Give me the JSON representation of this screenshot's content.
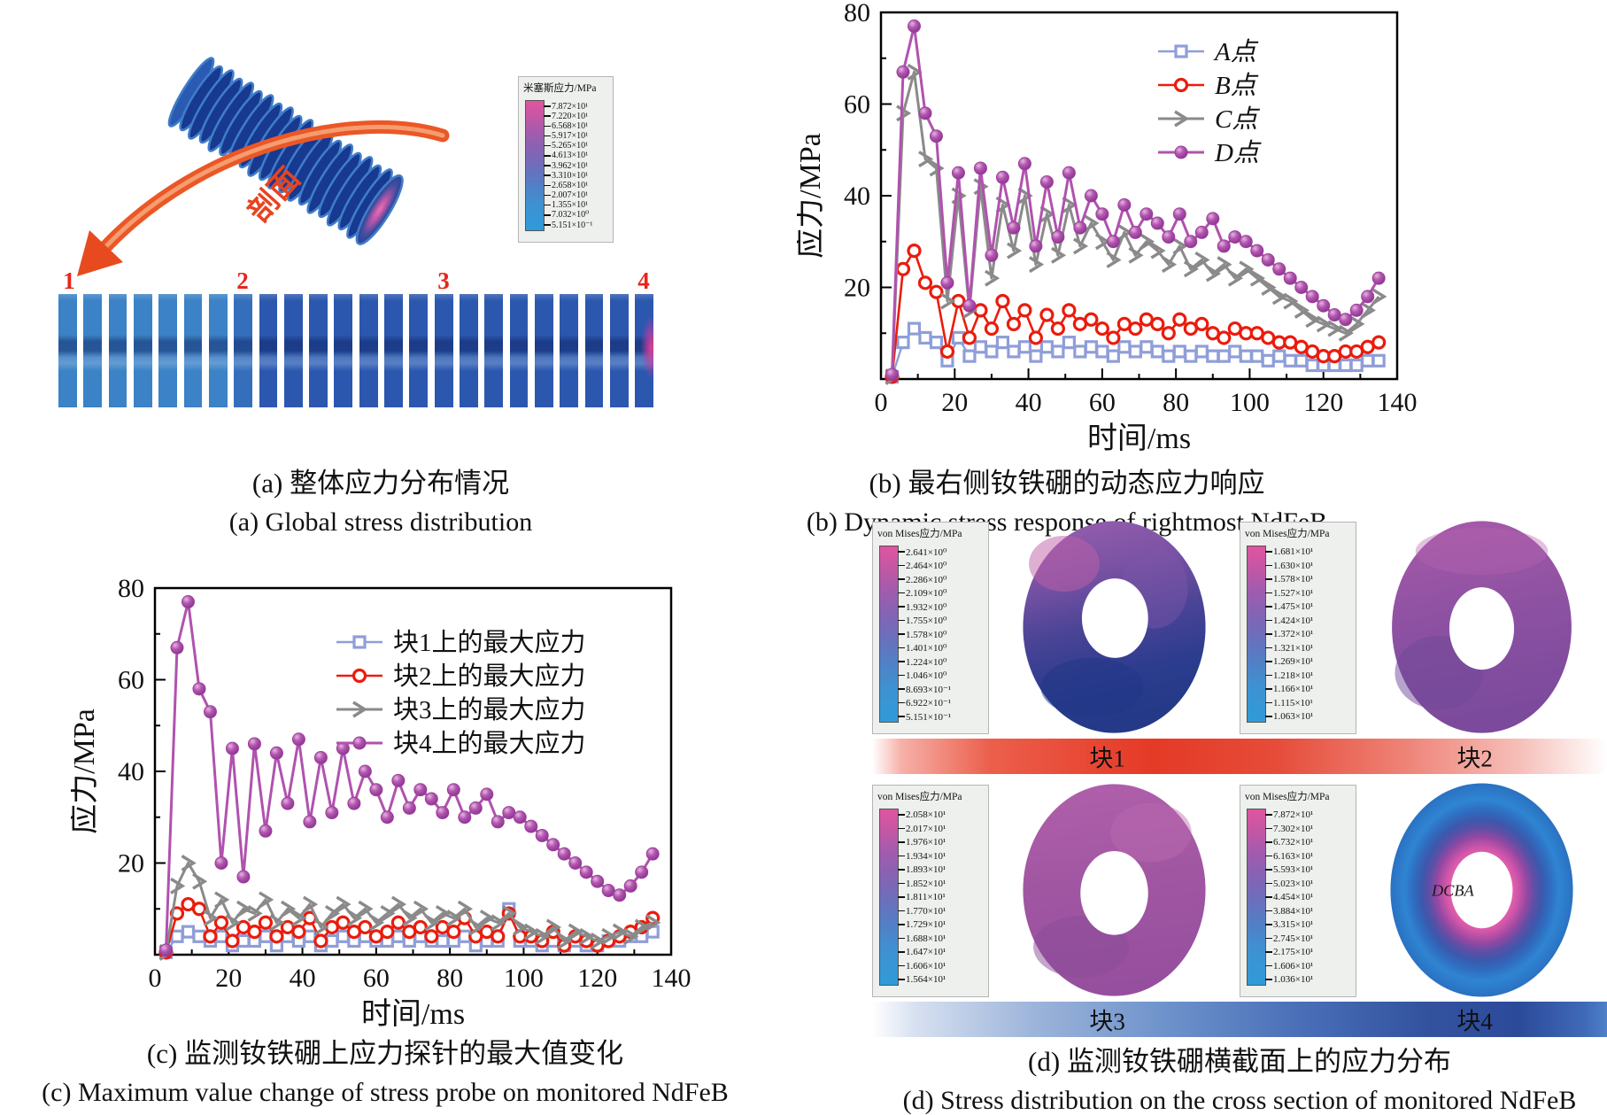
{
  "panel_a": {
    "caption_cn": "(a) 整体应力分布情况",
    "caption_en": "(a) Global stress distribution",
    "arrow_label": "剖面",
    "colorbar": {
      "title": "米塞斯应力/MPa",
      "values": [
        "7.872×10¹",
        "7.220×10¹",
        "6.568×10¹",
        "5.917×10¹",
        "5.265×10¹",
        "4.613×10¹",
        "3.962×10¹",
        "3.310×10¹",
        "2.658×10¹",
        "2.007×10¹",
        "1.355×10¹",
        "7.032×10⁰",
        "5.151×10⁻¹"
      ]
    },
    "block_numbers": [
      "1",
      "2",
      "3",
      "4"
    ],
    "bars": {
      "count": 24,
      "light_count": 7,
      "light_color": "#3b82c6",
      "mid_color": "#356fbb",
      "dark_color": "#2b57ae",
      "pink_accent": "#e83e98"
    }
  },
  "panel_b": {
    "caption_cn": "(b) 最右侧钕铁硼的动态应力响应",
    "caption_en": "(b) Dynamic stress response of rightmost NdFeB"
  },
  "panel_c": {
    "caption_cn": "(c) 监测钕铁硼上应力探针的最大值变化",
    "caption_en": "(c) Maximum value change of stress probe on monitored NdFeB"
  },
  "panel_d": {
    "caption_cn": "(d) 监测钕铁硼横截面上的应力分布",
    "caption_en": "(d) Stress distribution on the cross section of monitored NdFeB",
    "blocks": [
      {
        "label": "块1",
        "colorbar": {
          "title": "von Mises应力/MPa",
          "values": [
            "2.641×10⁰",
            "2.464×10⁰",
            "2.286×10⁰",
            "2.109×10⁰",
            "1.932×10⁰",
            "1.755×10⁰",
            "1.578×10⁰",
            "1.401×10⁰",
            "1.224×10⁰",
            "1.046×10⁰",
            "8.693×10⁻¹",
            "6.922×10⁻¹",
            "5.151×10⁻¹"
          ]
        }
      },
      {
        "label": "块2",
        "colorbar": {
          "title": "von Mises应力/MPa",
          "values": [
            "1.681×10¹",
            "1.630×10¹",
            "1.578×10¹",
            "1.527×10¹",
            "1.475×10¹",
            "1.424×10¹",
            "1.372×10¹",
            "1.321×10¹",
            "1.269×10¹",
            "1.218×10¹",
            "1.166×10¹",
            "1.115×10¹",
            "1.063×10¹"
          ]
        }
      },
      {
        "label": "块3",
        "colorbar": {
          "title": "von Mises应力/MPa",
          "values": [
            "2.058×10¹",
            "2.017×10¹",
            "1.976×10¹",
            "1.934×10¹",
            "1.893×10¹",
            "1.852×10¹",
            "1.811×10¹",
            "1.770×10¹",
            "1.729×10¹",
            "1.688×10¹",
            "1.647×10¹",
            "1.606×10¹",
            "1.564×10¹"
          ]
        }
      },
      {
        "label": "块4",
        "annotation": "DCBA",
        "colorbar": {
          "title": "von Mises应力/MPa",
          "values": [
            "7.872×10¹",
            "7.302×10¹",
            "6.732×10¹",
            "6.163×10¹",
            "5.593×10¹",
            "5.023×10¹",
            "4.454×10¹",
            "3.884×10¹",
            "3.315×10¹",
            "2.745×10¹",
            "2.175×10¹",
            "1.606×10¹",
            "1.036×10¹"
          ]
        }
      }
    ]
  },
  "chart_data": [
    {
      "type": "line",
      "panel": "b",
      "title": "",
      "xlabel": "时间/ms",
      "ylabel": "应力/MPa",
      "xlim": [
        0,
        140
      ],
      "ylim": [
        0,
        80
      ],
      "xticks": [
        0,
        20,
        40,
        60,
        80,
        100,
        120,
        140
      ],
      "yticks": [
        20,
        40,
        60,
        80
      ],
      "grid": false,
      "legend_position": "top-right",
      "legend_italic": true,
      "x": [
        3,
        6,
        9,
        12,
        15,
        18,
        21,
        24,
        27,
        30,
        33,
        36,
        39,
        42,
        45,
        48,
        51,
        54,
        57,
        60,
        63,
        66,
        69,
        72,
        75,
        78,
        81,
        84,
        87,
        90,
        93,
        96,
        99,
        102,
        105,
        108,
        111,
        114,
        117,
        120,
        123,
        126,
        129,
        132,
        135
      ],
      "series": [
        {
          "name": "A点",
          "color": "#8f9ed8",
          "marker": "open-square",
          "lw": 2.4,
          "values": [
            0.5,
            8,
            11,
            9,
            8,
            4,
            9,
            5,
            7,
            6,
            8,
            6,
            7,
            5,
            7,
            6,
            8,
            6,
            7,
            6,
            5,
            7,
            6,
            7,
            6,
            5,
            6,
            5,
            6,
            5,
            5,
            6,
            5,
            5,
            4,
            5,
            4,
            4,
            3,
            3,
            3,
            3,
            3,
            4,
            4
          ]
        },
        {
          "name": "B点",
          "color": "#ea1c0d",
          "marker": "open-circle",
          "lw": 2.6,
          "values": [
            0.5,
            24,
            28,
            21,
            19,
            6,
            17,
            9,
            15,
            11,
            17,
            12,
            15,
            9,
            14,
            11,
            15,
            12,
            13,
            11,
            9,
            12,
            11,
            13,
            12,
            10,
            13,
            11,
            12,
            10,
            9,
            11,
            10,
            10,
            9,
            8,
            8,
            7,
            6,
            5,
            5,
            6,
            6,
            7,
            8
          ]
        },
        {
          "name": "C点",
          "color": "#8a8a8a",
          "marker": "chevron",
          "lw": 3,
          "values": [
            0.5,
            58,
            67,
            48,
            46,
            17,
            40,
            15,
            42,
            22,
            38,
            28,
            40,
            25,
            36,
            27,
            38,
            29,
            34,
            30,
            26,
            32,
            27,
            30,
            28,
            25,
            29,
            24,
            26,
            23,
            25,
            22,
            24,
            22,
            20,
            18,
            17,
            15,
            13,
            12,
            11,
            10,
            12,
            15,
            18
          ]
        },
        {
          "name": "D点",
          "color": "#b052ae",
          "marker": "filled-sphere",
          "lw": 3,
          "values": [
            1,
            67,
            77,
            58,
            53,
            21,
            45,
            16,
            46,
            27,
            44,
            33,
            47,
            29,
            43,
            31,
            45,
            33,
            40,
            36,
            30,
            38,
            32,
            36,
            34,
            31,
            36,
            30,
            32,
            35,
            29,
            31,
            30,
            28,
            26,
            24,
            22,
            20,
            18,
            16,
            14,
            13,
            15,
            18,
            22
          ]
        }
      ]
    },
    {
      "type": "line",
      "panel": "c",
      "title": "",
      "xlabel": "时间/ms",
      "ylabel": "应力/MPa",
      "xlim": [
        0,
        140
      ],
      "ylim": [
        0,
        80
      ],
      "xticks": [
        0,
        20,
        40,
        60,
        80,
        100,
        120,
        140
      ],
      "yticks": [
        20,
        40,
        60,
        80
      ],
      "grid": false,
      "legend_position": "top-right",
      "legend_italic": false,
      "x": [
        3,
        6,
        9,
        12,
        15,
        18,
        21,
        24,
        27,
        30,
        33,
        36,
        39,
        42,
        45,
        48,
        51,
        54,
        57,
        60,
        63,
        66,
        69,
        72,
        75,
        78,
        81,
        84,
        87,
        90,
        93,
        96,
        99,
        102,
        105,
        108,
        111,
        114,
        117,
        120,
        123,
        126,
        129,
        132,
        135
      ],
      "series": [
        {
          "name": "块1上的最大应力",
          "color": "#8f9ed8",
          "marker": "open-square",
          "lw": 2.4,
          "values": [
            0.5,
            4,
            5,
            4,
            3,
            4,
            2,
            3,
            3,
            4,
            2,
            4,
            3,
            4,
            2,
            3,
            4,
            3,
            4,
            3,
            3,
            4,
            3,
            4,
            3,
            3,
            3,
            4,
            2,
            3,
            3,
            10,
            3,
            3,
            2,
            3,
            2,
            3,
            2,
            2,
            3,
            3,
            4,
            4,
            5
          ]
        },
        {
          "name": "块2上的最大应力",
          "color": "#ea1c0d",
          "marker": "open-circle",
          "lw": 2.6,
          "values": [
            0.5,
            9,
            11,
            10,
            4,
            7,
            3,
            6,
            5,
            7,
            4,
            6,
            5,
            8,
            3,
            6,
            7,
            5,
            6,
            4,
            5,
            7,
            5,
            6,
            4,
            6,
            5,
            8,
            4,
            5,
            4,
            9,
            4,
            4,
            3,
            5,
            2,
            4,
            3,
            2,
            3,
            4,
            5,
            6,
            8
          ]
        },
        {
          "name": "块3上的最大应力",
          "color": "#8a8a8a",
          "marker": "chevron",
          "lw": 3,
          "values": [
            0.5,
            15,
            20,
            16,
            8,
            12,
            7,
            10,
            9,
            12,
            7,
            10,
            8,
            11,
            6,
            9,
            11,
            8,
            10,
            7,
            9,
            11,
            8,
            10,
            7,
            9,
            8,
            10,
            6,
            8,
            7,
            9,
            6,
            5,
            4,
            6,
            3,
            5,
            4,
            3,
            4,
            5,
            4,
            6,
            7
          ]
        },
        {
          "name": "块4上的最大应力",
          "color": "#b052ae",
          "marker": "filled-sphere",
          "lw": 3,
          "values": [
            1,
            67,
            77,
            58,
            53,
            20,
            45,
            17,
            46,
            27,
            44,
            33,
            47,
            29,
            43,
            31,
            45,
            33,
            40,
            36,
            30,
            38,
            32,
            36,
            34,
            31,
            36,
            30,
            32,
            35,
            29,
            31,
            30,
            28,
            26,
            24,
            22,
            20,
            18,
            16,
            14,
            13,
            15,
            18,
            22
          ]
        }
      ]
    }
  ]
}
